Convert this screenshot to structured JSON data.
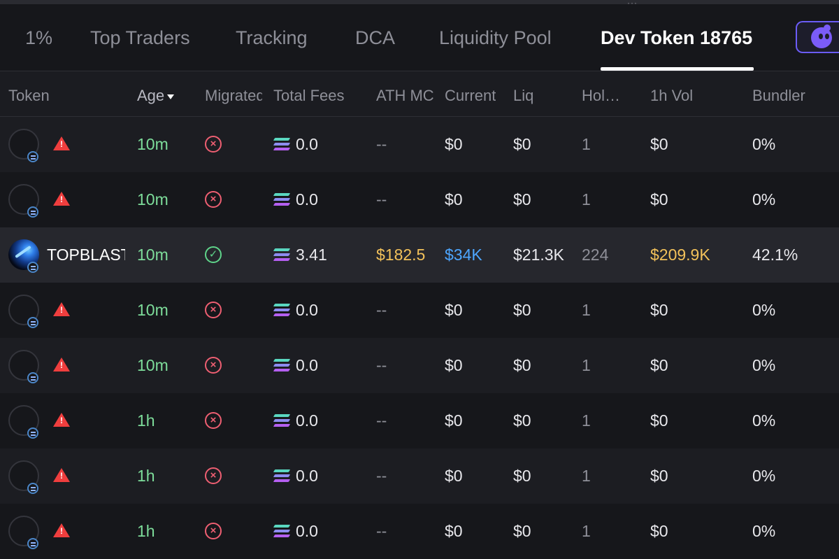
{
  "tabs": [
    {
      "label": "1%",
      "active": false
    },
    {
      "label": "Top Traders",
      "active": false
    },
    {
      "label": "Tracking",
      "active": false
    },
    {
      "label": "DCA",
      "active": false
    },
    {
      "label": "Liquidity Pool",
      "active": false
    },
    {
      "label": "Dev Token 18765",
      "active": true
    }
  ],
  "app_button_icon": "purple-mascot-icon",
  "columns": [
    "Token",
    "Age",
    "Migrated",
    "Total Fees",
    "ATH MC",
    "Current",
    "Liq",
    "Holders",
    "1h Vol",
    "Bundler"
  ],
  "sort": {
    "column": "Age",
    "direction": "desc"
  },
  "rows": [
    {
      "token": "",
      "has_image": false,
      "warning": true,
      "age": "10m",
      "migrated": false,
      "total_fees": "0.0",
      "ath_mc": "--",
      "current": "$0",
      "liq": "$0",
      "holders": "1",
      "vol_1h": "$0",
      "bundler": "0%"
    },
    {
      "token": "",
      "has_image": false,
      "warning": true,
      "age": "10m",
      "migrated": false,
      "total_fees": "0.0",
      "ath_mc": "--",
      "current": "$0",
      "liq": "$0",
      "holders": "1",
      "vol_1h": "$0",
      "bundler": "0%"
    },
    {
      "token": "TOPBLAST",
      "has_image": true,
      "warning": false,
      "age": "10m",
      "migrated": true,
      "total_fees": "3.41",
      "ath_mc": "$182.5",
      "current": "$34K",
      "liq": "$21.3K",
      "holders": "224",
      "vol_1h": "$209.9K",
      "bundler": "42.1%"
    },
    {
      "token": "",
      "has_image": false,
      "warning": true,
      "age": "10m",
      "migrated": false,
      "total_fees": "0.0",
      "ath_mc": "--",
      "current": "$0",
      "liq": "$0",
      "holders": "1",
      "vol_1h": "$0",
      "bundler": "0%"
    },
    {
      "token": "",
      "has_image": false,
      "warning": true,
      "age": "10m",
      "migrated": false,
      "total_fees": "0.0",
      "ath_mc": "--",
      "current": "$0",
      "liq": "$0",
      "holders": "1",
      "vol_1h": "$0",
      "bundler": "0%"
    },
    {
      "token": "",
      "has_image": false,
      "warning": true,
      "age": "1h",
      "migrated": false,
      "total_fees": "0.0",
      "ath_mc": "--",
      "current": "$0",
      "liq": "$0",
      "holders": "1",
      "vol_1h": "$0",
      "bundler": "0%"
    },
    {
      "token": "",
      "has_image": false,
      "warning": true,
      "age": "1h",
      "migrated": false,
      "total_fees": "0.0",
      "ath_mc": "--",
      "current": "$0",
      "liq": "$0",
      "holders": "1",
      "vol_1h": "$0",
      "bundler": "0%"
    },
    {
      "token": "",
      "has_image": false,
      "warning": true,
      "age": "1h",
      "migrated": false,
      "total_fees": "0.0",
      "ath_mc": "--",
      "current": "$0",
      "liq": "$0",
      "holders": "1",
      "vol_1h": "$0",
      "bundler": "0%"
    }
  ],
  "colors": {
    "accent_purple": "#6b5cf6",
    "age_green": "#7ddc9a",
    "gold": "#f2c15a",
    "blue": "#4da6ff",
    "bad_red": "#ee5f72",
    "good_green": "#5fd48a"
  }
}
